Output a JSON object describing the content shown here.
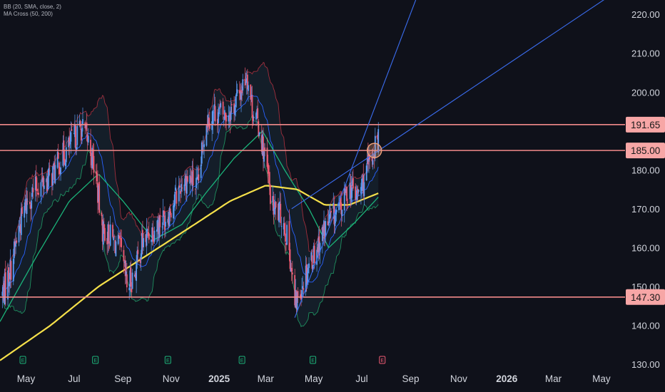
{
  "legend": {
    "bb": "BB (20, SMA, close, 2)",
    "ma_cross": "MA Cross (50, 200)"
  },
  "colors": {
    "background": "#0f111a",
    "grid": "#1c1f2b",
    "axis_text": "#d1d4dc",
    "candle_up": "#5b9cf6",
    "candle_down": "#ef5b74",
    "bb_upper": "#9e2e3c",
    "bb_lower": "#1f8f5f",
    "bb_basis": "#2962ff",
    "bb_fill": "#1a2a36",
    "ma50": "#1bb37a",
    "ma200": "#f5e04a",
    "hline": "#f28a8a",
    "trendline": "#3b6df0",
    "label_bg": "#f7a6a6",
    "label_text": "#1a1a1a",
    "circle": "#f0a27a",
    "marker": "#1db37a",
    "marker_e": "#ef5b74"
  },
  "chart_data": {
    "type": "candlestick",
    "x_tick_labels": [
      "May",
      "Jul",
      "Sep",
      "Nov",
      "2025",
      "Mar",
      "May",
      "Jul",
      "Sep",
      "Nov",
      "2026",
      "Mar",
      "May"
    ],
    "x_range": [
      "2024-03-29",
      "2026-05-31"
    ],
    "y_tick_labels": [
      "220.00",
      "210.00",
      "200.00",
      "180.00",
      "170.00",
      "160.00",
      "150.00",
      "140.00",
      "130.00"
    ],
    "ylim": [
      129.3,
      223.7
    ],
    "grid": false,
    "horizontal_levels": [
      {
        "label": "191.65",
        "value": 191.65
      },
      {
        "label": "185.00",
        "value": 185.0
      },
      {
        "label": "147.30",
        "value": 147.3
      }
    ],
    "trendlines": [
      {
        "from": [
          "2025-04-07",
          142.0
        ],
        "to": [
          "2025-09-08",
          224.0
        ]
      },
      {
        "from": [
          "2025-04-03",
          170.0
        ],
        "to": [
          "2026-05-06",
          224.0
        ]
      }
    ],
    "highlight_circle": {
      "date": "2025-07-17",
      "value": 185.0
    },
    "earnings_markers": [
      {
        "date": "2024-04-27",
        "label": "E"
      },
      {
        "date": "2024-07-28",
        "label": "E"
      },
      {
        "date": "2024-10-28",
        "label": "E"
      },
      {
        "date": "2025-01-30",
        "label": "E"
      },
      {
        "date": "2025-04-30",
        "label": "E"
      },
      {
        "date": "2025-07-27",
        "label": "E"
      }
    ],
    "price_anchors": [
      [
        "2024-04-01",
        148
      ],
      [
        "2024-04-12",
        155
      ],
      [
        "2024-04-22",
        165
      ],
      [
        "2024-05-02",
        172
      ],
      [
        "2024-05-16",
        176
      ],
      [
        "2024-06-01",
        178
      ],
      [
        "2024-06-15",
        183
      ],
      [
        "2024-07-01",
        188
      ],
      [
        "2024-07-10",
        191
      ],
      [
        "2024-07-20",
        187
      ],
      [
        "2024-07-29",
        178
      ],
      [
        "2024-08-05",
        165
      ],
      [
        "2024-08-15",
        163
      ],
      [
        "2024-08-28",
        160
      ],
      [
        "2024-09-06",
        150
      ],
      [
        "2024-09-15",
        153
      ],
      [
        "2024-09-25",
        161
      ],
      [
        "2024-10-05",
        164
      ],
      [
        "2024-10-15",
        166
      ],
      [
        "2024-10-25",
        168
      ],
      [
        "2024-11-05",
        172
      ],
      [
        "2024-11-15",
        177
      ],
      [
        "2024-11-25",
        178
      ],
      [
        "2024-12-05",
        175
      ],
      [
        "2024-12-15",
        193
      ],
      [
        "2024-12-28",
        195
      ],
      [
        "2025-01-08",
        194
      ],
      [
        "2025-01-18",
        196
      ],
      [
        "2025-01-28",
        200
      ],
      [
        "2025-02-05",
        205
      ],
      [
        "2025-02-12",
        196
      ],
      [
        "2025-02-22",
        190
      ],
      [
        "2025-03-01",
        182
      ],
      [
        "2025-03-10",
        170
      ],
      [
        "2025-03-22",
        168
      ],
      [
        "2025-03-31",
        160
      ],
      [
        "2025-04-07",
        145
      ],
      [
        "2025-04-15",
        150
      ],
      [
        "2025-04-25",
        156
      ],
      [
        "2025-05-05",
        160
      ],
      [
        "2025-05-15",
        165
      ],
      [
        "2025-05-25",
        168
      ],
      [
        "2025-06-05",
        170
      ],
      [
        "2025-06-15",
        176
      ],
      [
        "2025-06-25",
        173
      ],
      [
        "2025-07-05",
        178
      ],
      [
        "2025-07-15",
        184
      ],
      [
        "2025-07-22",
        190
      ]
    ],
    "ma200_anchors": [
      [
        "2024-03-29",
        131
      ],
      [
        "2024-06-01",
        140
      ],
      [
        "2024-08-01",
        150
      ],
      [
        "2024-10-01",
        158
      ],
      [
        "2024-12-01",
        166
      ],
      [
        "2025-01-15",
        172
      ],
      [
        "2025-03-01",
        176
      ],
      [
        "2025-04-10",
        175
      ],
      [
        "2025-05-15",
        171
      ],
      [
        "2025-06-15",
        171
      ],
      [
        "2025-07-22",
        174
      ]
    ],
    "ma50_anchors": [
      [
        "2024-03-29",
        141
      ],
      [
        "2024-05-15",
        158
      ],
      [
        "2024-06-25",
        172
      ],
      [
        "2024-08-01",
        179
      ],
      [
        "2024-09-01",
        172
      ],
      [
        "2024-10-10",
        162
      ],
      [
        "2024-11-15",
        166
      ],
      [
        "2024-12-15",
        174
      ],
      [
        "2025-01-20",
        183
      ],
      [
        "2025-02-25",
        190
      ],
      [
        "2025-03-25",
        180
      ],
      [
        "2025-04-25",
        170
      ],
      [
        "2025-05-20",
        160
      ],
      [
        "2025-06-20",
        166
      ],
      [
        "2025-07-22",
        173
      ]
    ]
  }
}
